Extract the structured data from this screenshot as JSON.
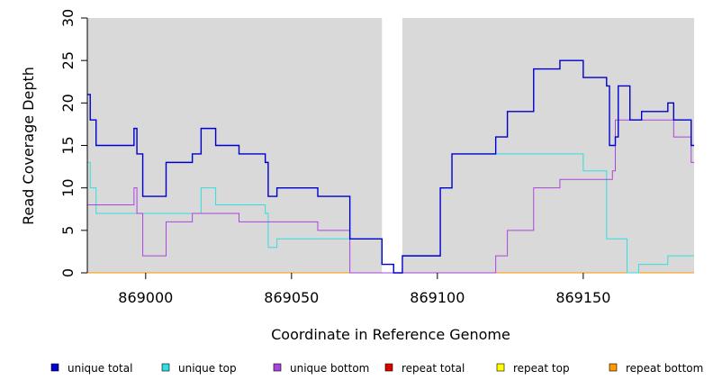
{
  "chart_data": {
    "type": "line",
    "title": "",
    "xlabel": "Coordinate in Reference Genome",
    "ylabel": "Read Coverage Depth",
    "xlim": [
      868980,
      869188
    ],
    "ylim": [
      0,
      30
    ],
    "x_ticks": [
      869000,
      869050,
      869100,
      869150
    ],
    "y_ticks": [
      0,
      5,
      10,
      15,
      20,
      25,
      30
    ],
    "grid": false,
    "background_color": "#d9d9d9",
    "shaded_regions": [
      [
        868980,
        869081
      ],
      [
        869088,
        869188
      ]
    ],
    "legend_position": "bottom",
    "series": [
      {
        "name": "unique total",
        "color": "#0000cc",
        "points": [
          [
            868980,
            21
          ],
          [
            868981,
            18
          ],
          [
            868983,
            15
          ],
          [
            868996,
            17
          ],
          [
            868997,
            14
          ],
          [
            868999,
            9
          ],
          [
            869007,
            13
          ],
          [
            869016,
            14
          ],
          [
            869019,
            17
          ],
          [
            869024,
            15
          ],
          [
            869032,
            14
          ],
          [
            869041,
            13
          ],
          [
            869042,
            9
          ],
          [
            869045,
            10
          ],
          [
            869059,
            9
          ],
          [
            869070,
            4
          ],
          [
            869081,
            1
          ],
          [
            869085,
            0
          ],
          [
            869088,
            2
          ],
          [
            869101,
            10
          ],
          [
            869105,
            14
          ],
          [
            869120,
            16
          ],
          [
            869124,
            19
          ],
          [
            869133,
            24
          ],
          [
            869142,
            25
          ],
          [
            869150,
            23
          ],
          [
            869158,
            22
          ],
          [
            869159,
            15
          ],
          [
            869161,
            16
          ],
          [
            869162,
            22
          ],
          [
            869166,
            18
          ],
          [
            869170,
            19
          ],
          [
            869179,
            20
          ],
          [
            869181,
            18
          ],
          [
            869187,
            15
          ],
          [
            869188,
            15
          ]
        ]
      },
      {
        "name": "unique top",
        "color": "#33dddd",
        "points": [
          [
            868980,
            13
          ],
          [
            868981,
            10
          ],
          [
            868983,
            7
          ],
          [
            869019,
            10
          ],
          [
            869024,
            8
          ],
          [
            869041,
            7
          ],
          [
            869042,
            3
          ],
          [
            869045,
            4
          ],
          [
            869070,
            4
          ],
          [
            869081,
            1
          ],
          [
            869085,
            0
          ],
          [
            869088,
            2
          ],
          [
            869101,
            10
          ],
          [
            869105,
            14
          ],
          [
            869150,
            12
          ],
          [
            869158,
            4
          ],
          [
            869165,
            0
          ],
          [
            869169,
            1
          ],
          [
            869179,
            2
          ],
          [
            869188,
            2
          ]
        ]
      },
      {
        "name": "unique bottom",
        "color": "#aa44dd",
        "points": [
          [
            868980,
            8
          ],
          [
            868996,
            10
          ],
          [
            868997,
            7
          ],
          [
            868999,
            2
          ],
          [
            869007,
            6
          ],
          [
            869016,
            7
          ],
          [
            869032,
            6
          ],
          [
            869059,
            5
          ],
          [
            869070,
            0
          ],
          [
            869120,
            2
          ],
          [
            869124,
            5
          ],
          [
            869133,
            10
          ],
          [
            869142,
            11
          ],
          [
            869160,
            12
          ],
          [
            869161,
            18
          ],
          [
            869181,
            16
          ],
          [
            869187,
            13
          ],
          [
            869188,
            13
          ]
        ]
      },
      {
        "name": "repeat total",
        "color": "#dd0000",
        "points": [
          [
            868980,
            0
          ],
          [
            869188,
            0
          ]
        ]
      },
      {
        "name": "repeat top",
        "color": "#ffff00",
        "points": [
          [
            868980,
            0
          ],
          [
            869188,
            0
          ]
        ]
      },
      {
        "name": "repeat bottom",
        "color": "#ff9900",
        "points": [
          [
            868980,
            0
          ],
          [
            869188,
            0
          ]
        ]
      }
    ]
  }
}
